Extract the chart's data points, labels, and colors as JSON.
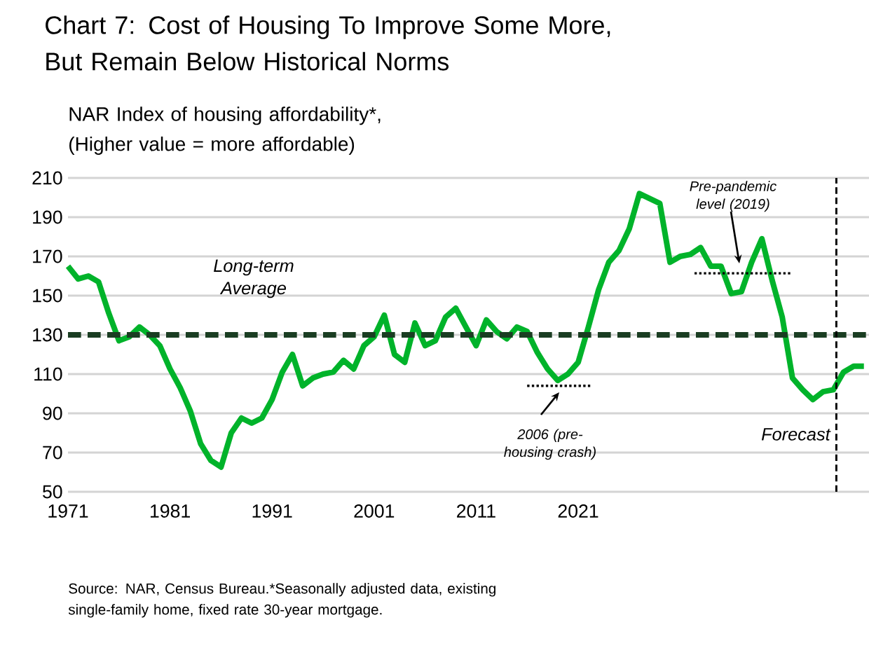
{
  "chart_data": {
    "type": "line",
    "title": "Chart 7: Cost of Housing To Improve Some More, But Remain Below Historical Norms",
    "ylabel": "NAR Index of housing affordability*, (Higher value = more affordable)",
    "x": [
      1971,
      1972,
      1973,
      1974,
      1975,
      1976,
      1977,
      1978,
      1979,
      1980,
      1981,
      1982,
      1983,
      1984,
      1985,
      1986,
      1987,
      1988,
      1989,
      1990,
      1991,
      1992,
      1993,
      1994,
      1995,
      1996,
      1997,
      1998,
      1999,
      2000,
      2001,
      2002,
      2003,
      2004,
      2005,
      2006,
      2007,
      2008,
      2009,
      2010,
      2011,
      2012,
      2013,
      2014,
      2015,
      2016,
      2017,
      2018,
      2019,
      2020,
      2021,
      2022,
      2023,
      2024,
      2025,
      2026,
      2027,
      2028,
      2029,
      2030,
      2031,
      2032,
      2033,
      2034,
      2035,
      2036,
      2037,
      2038,
      2039,
      2040,
      2041,
      2042,
      2043,
      2044,
      2045,
      2046,
      2047,
      2048,
      2049
    ],
    "xlim": [
      1971,
      2049.5
    ],
    "xticks": [
      1971,
      1981,
      1991,
      2001,
      2011,
      2021
    ],
    "ylim": [
      50,
      210
    ],
    "yticks": [
      50,
      70,
      90,
      110,
      130,
      150,
      170,
      190,
      210
    ],
    "grid": "y",
    "series": [
      {
        "color": "#00b32a",
        "values": [
          165,
          158.5,
          160,
          157,
          141,
          127,
          129,
          134,
          130,
          124.5,
          112.6,
          103,
          91,
          74.5,
          66,
          62.6,
          80,
          87.6,
          85,
          87.6,
          97,
          111,
          120,
          104,
          108,
          110,
          111,
          117,
          112.6,
          124.5,
          129,
          140,
          120,
          116,
          136,
          124.5,
          127,
          139,
          143.6,
          134,
          124.5,
          137.6,
          131.7,
          128,
          134,
          131.7,
          121,
          112.6,
          106.7,
          110,
          116,
          134,
          153,
          167,
          173,
          184,
          202,
          199.5,
          197,
          167,
          170,
          171,
          174.5,
          165,
          165,
          151,
          152,
          167,
          179,
          158,
          139,
          108,
          102,
          97,
          101,
          102,
          111,
          114,
          114
        ]
      },
      {
        "type": "line",
        "line_style": "dotted",
        "color": "#000000",
        "x": [
          2016,
          2022.4
        ],
        "values": [
          104,
          104
        ]
      },
      {
        "type": "line",
        "line_style": "dotted",
        "color": "#000000",
        "x": [
          2032.4,
          2042
        ],
        "values": [
          161.4,
          161.4
        ]
      }
    ],
    "ref_lines": [
      {
        "axis": "y",
        "value": 130,
        "label": "Long-term Average",
        "color": "#1a3d22",
        "line_style": "dashed"
      },
      {
        "axis": "x",
        "value": 2046.3,
        "label": "Forecast",
        "color": "#000000",
        "line_style": "dashed"
      }
    ],
    "annotations": [
      "2006 (pre-housing crash)",
      "Pre-pandemic level (2019)",
      "Source: NAR, Census Bureau.*Seasonally adjusted data, existing single-family home, fixed rate 30-year mortgage."
    ]
  }
}
